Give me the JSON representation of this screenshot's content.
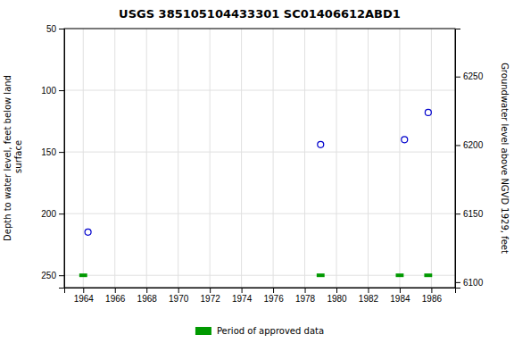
{
  "chart_data": {
    "type": "scatter",
    "title": "USGS 385105104433301 SC01406612ABD1",
    "ylabel": "Depth to water level, feet below land\n surface",
    "y2label": "Groundwater level above NGVD 1929, feet",
    "xlim": [
      1962.8,
      1987.5
    ],
    "xticks": [
      1964,
      1966,
      1968,
      1970,
      1972,
      1974,
      1976,
      1978,
      1980,
      1982,
      1984,
      1986
    ],
    "ylim": [
      260,
      50
    ],
    "yticks": [
      50,
      100,
      150,
      200,
      250
    ],
    "y2lim": [
      6096,
      6285
    ],
    "y2ticks": [
      6100,
      6150,
      6200,
      6250
    ],
    "grid": true,
    "legend": "bottom",
    "series": [
      {
        "type": "scatter",
        "marker": "circle",
        "color": "#0000cc",
        "x": [
          1964.3,
          1979.0,
          1984.3,
          1985.8
        ],
        "values": [
          215,
          144,
          140,
          118
        ]
      },
      {
        "type": "bar",
        "name": "Period of approved data",
        "color": "#009900",
        "x": [
          1963.75,
          1978.75,
          1983.75,
          1985.55
        ],
        "x_end": [
          1964.25,
          1979.25,
          1984.25,
          1986.05
        ],
        "values": [
          250,
          250,
          250,
          250
        ]
      }
    ]
  }
}
